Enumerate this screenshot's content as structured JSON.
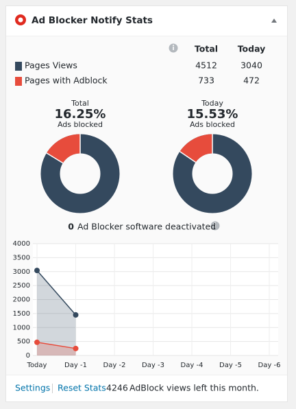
{
  "header": {
    "title": "Ad Blocker Notify Stats"
  },
  "table": {
    "columns": [
      "Total",
      "Today"
    ],
    "rows": [
      {
        "label": "Pages Views",
        "color": "#34495e",
        "values": [
          4512,
          3040
        ]
      },
      {
        "label": "Pages with Adblock",
        "color": "#e74c3c",
        "values": [
          733,
          472
        ]
      }
    ]
  },
  "donuts": [
    {
      "caption": "Total",
      "value": 16.25,
      "value_label": "16.25%",
      "subcaption": "Ads blocked"
    },
    {
      "caption": "Today",
      "value": 15.53,
      "value_label": "15.53%",
      "subcaption": "Ads blocked"
    }
  ],
  "deactivated": {
    "count": 0,
    "text": "Ad Blocker software deactivated"
  },
  "chart_data": {
    "type": "line",
    "categories": [
      "Today",
      "Day -1",
      "Day -2",
      "Day -3",
      "Day -4",
      "Day -5",
      "Day -6"
    ],
    "series": [
      {
        "color": "#34495e",
        "values": [
          3040,
          1450,
          null,
          null,
          null,
          null,
          null
        ]
      },
      {
        "color": "#e74c3c",
        "values": [
          472,
          250,
          null,
          null,
          null,
          null,
          null
        ]
      }
    ],
    "ylim": [
      0,
      4000
    ],
    "yticks": [
      0,
      500,
      1000,
      1500,
      2000,
      2500,
      3000,
      3500,
      4000
    ],
    "grid": true
  },
  "footer": {
    "links": [
      "Settings",
      "Reset Stats"
    ],
    "remaining": 4246,
    "remaining_text": "AdBlock views left this month."
  }
}
